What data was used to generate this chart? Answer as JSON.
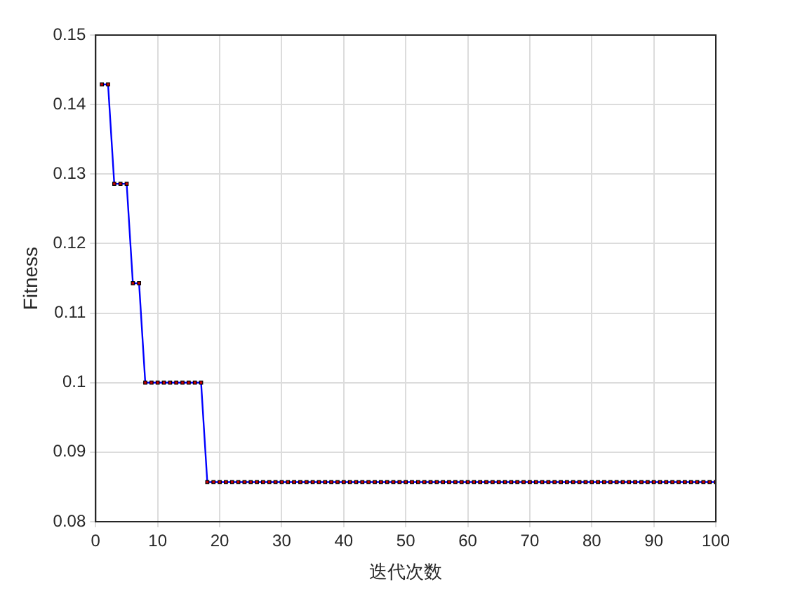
{
  "chart_data": {
    "type": "line",
    "xlabel": "迭代次数",
    "ylabel": "Fitness",
    "x": [
      1,
      2,
      3,
      4,
      5,
      6,
      7,
      8,
      9,
      10,
      11,
      12,
      13,
      14,
      15,
      16,
      17,
      18,
      19,
      20,
      21,
      22,
      23,
      24,
      25,
      26,
      27,
      28,
      29,
      30,
      31,
      32,
      33,
      34,
      35,
      36,
      37,
      38,
      39,
      40,
      41,
      42,
      43,
      44,
      45,
      46,
      47,
      48,
      49,
      50,
      51,
      52,
      53,
      54,
      55,
      56,
      57,
      58,
      59,
      60,
      61,
      62,
      63,
      64,
      65,
      66,
      67,
      68,
      69,
      70,
      71,
      72,
      73,
      74,
      75,
      76,
      77,
      78,
      79,
      80,
      81,
      82,
      83,
      84,
      85,
      86,
      87,
      88,
      89,
      90,
      91,
      92,
      93,
      94,
      95,
      96,
      97,
      98,
      99,
      100
    ],
    "series": [
      {
        "color": "#0000ff",
        "values": [
          0.1429,
          0.1429,
          0.1286,
          0.1286,
          0.1286,
          0.1143,
          0.1143,
          0.1,
          0.1,
          0.1,
          0.1,
          0.1,
          0.1,
          0.1,
          0.1,
          0.1,
          0.1,
          0.0857,
          0.0857,
          0.0857,
          0.0857,
          0.0857,
          0.0857,
          0.0857,
          0.0857,
          0.0857,
          0.0857,
          0.0857,
          0.0857,
          0.0857,
          0.0857,
          0.0857,
          0.0857,
          0.0857,
          0.0857,
          0.0857,
          0.0857,
          0.0857,
          0.0857,
          0.0857,
          0.0857,
          0.0857,
          0.0857,
          0.0857,
          0.0857,
          0.0857,
          0.0857,
          0.0857,
          0.0857,
          0.0857,
          0.0857,
          0.0857,
          0.0857,
          0.0857,
          0.0857,
          0.0857,
          0.0857,
          0.0857,
          0.0857,
          0.0857,
          0.0857,
          0.0857,
          0.0857,
          0.0857,
          0.0857,
          0.0857,
          0.0857,
          0.0857,
          0.0857,
          0.0857,
          0.0857,
          0.0857,
          0.0857,
          0.0857,
          0.0857,
          0.0857,
          0.0857,
          0.0857,
          0.0857,
          0.0857,
          0.0857,
          0.0857,
          0.0857,
          0.0857,
          0.0857,
          0.0857,
          0.0857,
          0.0857,
          0.0857,
          0.0857,
          0.0857,
          0.0857,
          0.0857,
          0.0857,
          0.0857,
          0.0857,
          0.0857,
          0.0857,
          0.0857,
          0.0857
        ],
        "colors": [
          "#cc0000",
          "#cc0000",
          "#cc0000",
          "#cc0000",
          "#cc0000",
          "#cc0000",
          "#cc0000",
          "#cc0000",
          "#cc0000",
          "#cc0000",
          "#cc0000",
          "#cc0000",
          "#cc0000",
          "#cc0000",
          "#cc0000",
          "#cc0000",
          "#cc0000",
          "#cc0000",
          "#cc0000",
          "#cc0000",
          "#cc0000",
          "#cc0000",
          "#cc0000",
          "#cc0000",
          "#cc0000",
          "#cc0000",
          "#cc0000",
          "#cc0000",
          "#cc0000",
          "#cc0000",
          "#cc0000",
          "#cc0000",
          "#cc0000",
          "#cc0000",
          "#cc0000",
          "#cc0000",
          "#cc0000",
          "#cc0000",
          "#cc0000",
          "#cc0000",
          "#cc0000",
          "#cc0000",
          "#cc0000",
          "#cc0000",
          "#cc0000",
          "#cc0000",
          "#cc0000",
          "#cc0000",
          "#cc0000",
          "#cc0000",
          "#cc0000",
          "#cc0000",
          "#cc0000",
          "#cc0000",
          "#cc0000",
          "#cc0000",
          "#cc0000",
          "#cc0000",
          "#cc0000",
          "#cc0000",
          "#cc0000",
          "#cc0000",
          "#cc0000",
          "#cc0000",
          "#cc0000",
          "#cc0000",
          "#cc0000",
          "#cc0000",
          "#cc0000",
          "#cc0000",
          "#cc0000",
          "#cc0000",
          "#cc0000",
          "#cc0000",
          "#cc0000",
          "#cc0000",
          "#cc0000",
          "#cc0000",
          "#cc0000",
          "#cc0000",
          "#cc0000",
          "#cc0000",
          "#cc0000",
          "#cc0000",
          "#cc0000",
          "#cc0000",
          "#cc0000",
          "#cc0000",
          "#cc0000",
          "#cc0000",
          "#cc0000",
          "#cc0000",
          "#cc0000",
          "#cc0000",
          "#cc0000",
          "#cc0000",
          "#cc0000",
          "#cc0000",
          "#cc0000",
          "#cc0000"
        ]
      }
    ],
    "xlim": [
      0,
      100
    ],
    "xticks": [
      0,
      10,
      20,
      30,
      40,
      50,
      60,
      70,
      80,
      90,
      100
    ],
    "ylim": [
      0.08,
      0.15
    ],
    "yticks": [
      0.08,
      0.09,
      0.1,
      0.11,
      0.12,
      0.13,
      0.14,
      0.15
    ],
    "grid": true,
    "marker": "square",
    "line_style": "solid"
  }
}
